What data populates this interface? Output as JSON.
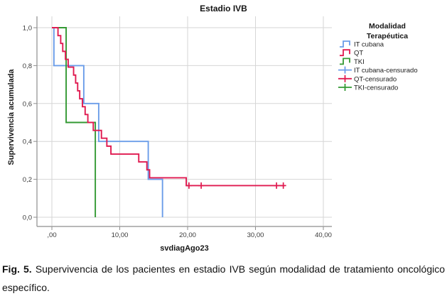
{
  "figure_caption": {
    "prefix": "Fig. 5.",
    "text": "Supervivencia de los pacientes en estadio IVB según modalidad de tratamiento oncológico específico."
  },
  "chart_data": {
    "type": "line",
    "subtype": "kaplan-meier-step",
    "title": "Estadio IVB",
    "xlabel": "svdiagAgo23",
    "ylabel": "Supervivencia acumulada",
    "xlim": [
      0,
      41.5
    ],
    "ylim": [
      0,
      1
    ],
    "grid": true,
    "x_tick_values": [
      0,
      10,
      20,
      30,
      40
    ],
    "x_tick_labels": [
      ",00",
      "10,00",
      "20,00",
      "30,00",
      "40,00"
    ],
    "y_tick_values": [
      0,
      0.2,
      0.4,
      0.6,
      0.8,
      1.0
    ],
    "y_tick_labels": [
      "0,0",
      "0,2",
      "0,4",
      "0,6",
      "0,8",
      "1,0"
    ],
    "colors": {
      "it_cubana": "#6B9DE9",
      "qt": "#E01A50",
      "tki": "#339933",
      "grid": "#D6D6D6",
      "axis": "#8E8E8E"
    },
    "legend_position": "right",
    "legend_title_lines": [
      "Modalidad",
      "Terapéutica"
    ],
    "legend_items": [
      {
        "label": "IT cubana",
        "type": "line",
        "color_key": "it_cubana"
      },
      {
        "label": "QT",
        "type": "line",
        "color_key": "qt"
      },
      {
        "label": "TKI",
        "type": "line",
        "color_key": "tki"
      },
      {
        "label": "IT cubana-censurado",
        "type": "censor",
        "color_key": "it_cubana"
      },
      {
        "label": "QT-censurado",
        "type": "censor",
        "color_key": "qt"
      },
      {
        "label": "TKI-censurado",
        "type": "censor",
        "color_key": "tki"
      }
    ],
    "series": [
      {
        "name": "IT cubana",
        "color_key": "it_cubana",
        "start": [
          0,
          1.0
        ],
        "steps": [
          [
            0.3,
            0.8
          ],
          [
            4.7,
            0.6
          ],
          [
            6.9,
            0.4
          ],
          [
            14.2,
            0.2
          ],
          [
            16.3,
            0.0
          ]
        ],
        "end_x": 16.3
      },
      {
        "name": "QT",
        "color_key": "qt",
        "start": [
          0,
          1.0
        ],
        "steps": [
          [
            0.9,
            0.958
          ],
          [
            1.3,
            0.917
          ],
          [
            1.6,
            0.875
          ],
          [
            2.0,
            0.833
          ],
          [
            2.4,
            0.792
          ],
          [
            3.2,
            0.75
          ],
          [
            3.5,
            0.708
          ],
          [
            3.8,
            0.667
          ],
          [
            4.1,
            0.625
          ],
          [
            4.5,
            0.583
          ],
          [
            4.9,
            0.542
          ],
          [
            5.3,
            0.5
          ],
          [
            6.1,
            0.458
          ],
          [
            7.3,
            0.417
          ],
          [
            8.1,
            0.375
          ],
          [
            8.7,
            0.333
          ],
          [
            12.8,
            0.292
          ],
          [
            14.0,
            0.25
          ],
          [
            14.4,
            0.208
          ],
          [
            19.8,
            0.167
          ]
        ],
        "end_x": 34.3
      },
      {
        "name": "TKI",
        "color_key": "tki",
        "start": [
          0,
          1.0
        ],
        "steps": [
          [
            2.1,
            0.5
          ],
          [
            6.4,
            0.0
          ]
        ],
        "end_x": 6.4
      }
    ],
    "censored_series": [
      {
        "name": "IT cubana-censurado",
        "color_key": "it_cubana",
        "points": []
      },
      {
        "name": "QT-censurado",
        "color_key": "qt",
        "points": [
          [
            20.2,
            0.167
          ],
          [
            22.0,
            0.167
          ],
          [
            33.1,
            0.167
          ],
          [
            34.1,
            0.167
          ]
        ]
      },
      {
        "name": "TKI-censurado",
        "color_key": "tki",
        "points": []
      }
    ]
  }
}
